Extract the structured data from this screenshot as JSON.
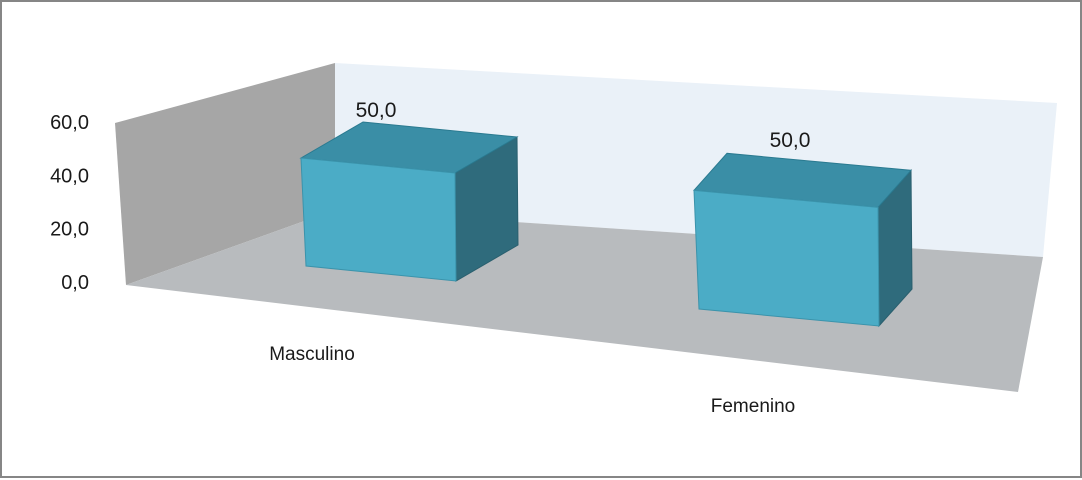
{
  "chart_data": {
    "type": "bar",
    "style": "3d-column",
    "categories": [
      "Masculino",
      "Femenino"
    ],
    "series": [
      {
        "values": [
          50.0,
          50.0
        ]
      }
    ],
    "data_labels": [
      "50,0",
      "50,0"
    ],
    "y_ticks": [
      {
        "value": 0,
        "label": "0,0"
      },
      {
        "value": 20,
        "label": "20,0"
      },
      {
        "value": 40,
        "label": "40,0"
      },
      {
        "value": 60,
        "label": "60,0"
      }
    ],
    "ylim": [
      0,
      60
    ],
    "grid": false,
    "legend": "none",
    "colors": {
      "bar_front": "#4bacc6",
      "bar_top": "#3a8ea6",
      "bar_side": "#2f6b7c",
      "back_wall": "#eaf1f8",
      "side_wall": "#a6a6a6",
      "floor": "#b8bbbe",
      "frame": "#868686"
    }
  }
}
